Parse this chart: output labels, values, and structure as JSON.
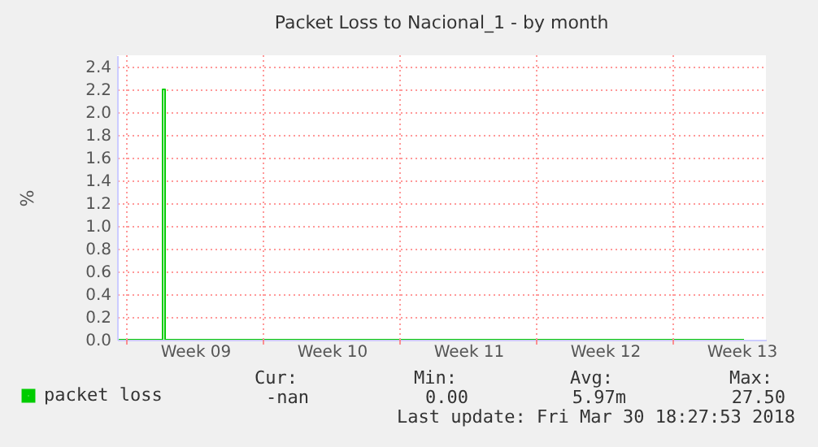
{
  "chart_data": {
    "type": "line",
    "title": "Packet Loss to Nacional_1 - by month",
    "ylabel": "%",
    "series": [
      {
        "name": "packet loss",
        "color": "#00cc00",
        "x": [
          "2018-02-25T14:00",
          "2018-02-27T20:00",
          "2018-02-27T20:00",
          "2018-02-27T23:00",
          "2018-02-27T23:00",
          "2018-03-29T15:00"
        ],
        "values": [
          0,
          0,
          2.2,
          2.2,
          0,
          0
        ]
      }
    ],
    "xlim": [
      "2018-02-25T12:00",
      "2018-03-30T18:00"
    ],
    "xticks": [
      {
        "value": "2018-02-26",
        "label": null
      },
      {
        "value": "2018-03-01T12:00",
        "label": "Week 09"
      },
      {
        "value": "2018-03-05",
        "label": null
      },
      {
        "value": "2018-03-08T12:00",
        "label": "Week 10"
      },
      {
        "value": "2018-03-12",
        "label": null
      },
      {
        "value": "2018-03-15T12:00",
        "label": "Week 11"
      },
      {
        "value": "2018-03-19",
        "label": null
      },
      {
        "value": "2018-03-22T12:00",
        "label": "Week 12"
      },
      {
        "value": "2018-03-26",
        "label": null
      },
      {
        "value": "2018-03-29T12:00",
        "label": "Week 13"
      }
    ],
    "ylim": [
      0,
      2.5
    ],
    "yticks": [
      {
        "value": 0,
        "label": "0.0"
      },
      {
        "value": 0.2,
        "label": "0.2"
      },
      {
        "value": 0.4,
        "label": "0.4"
      },
      {
        "value": 0.6,
        "label": "0.6"
      },
      {
        "value": 0.8,
        "label": "0.8"
      },
      {
        "value": 1,
        "label": "1.0"
      },
      {
        "value": 1.2,
        "label": "1.2"
      },
      {
        "value": 1.4,
        "label": "1.4"
      },
      {
        "value": 1.6,
        "label": "1.6"
      },
      {
        "value": 1.8,
        "label": "1.8"
      },
      {
        "value": 2,
        "label": "2.0"
      },
      {
        "value": 2.2,
        "label": "2.2"
      },
      {
        "value": 2.4,
        "label": "2.4"
      }
    ],
    "grid": true,
    "legend": "bottom left",
    "annotations": [
      "Cur:",
      "Min:",
      "Avg:",
      "Max:",
      "-nan",
      "0.00",
      "5.97m",
      "27.50",
      "Last update: Fri Mar 30 18:27:53 2018"
    ]
  }
}
